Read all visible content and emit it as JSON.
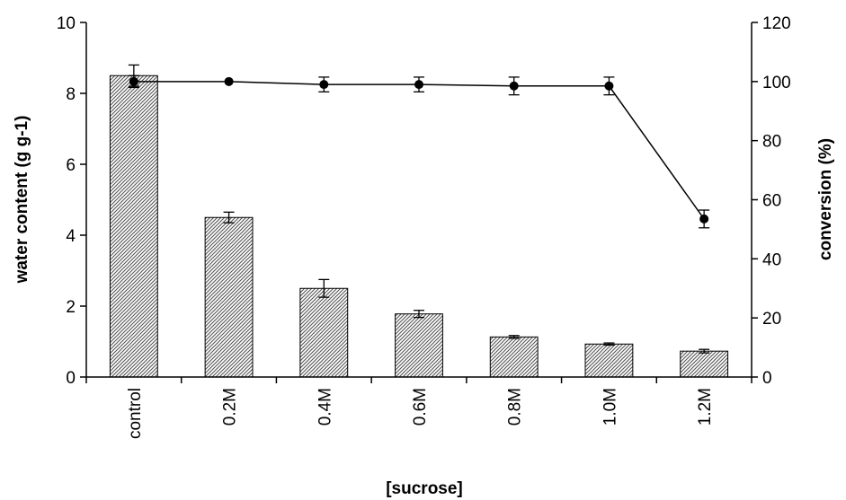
{
  "chart_data": {
    "type": "bar",
    "title": "",
    "xlabel": "[sucrose]",
    "ylabel": "water content (g g-1)",
    "y2label": "conversion (%)",
    "categories": [
      "control",
      "0.2M",
      "0.4M",
      "0.6M",
      "0.8M",
      "1.0M",
      "1.2M"
    ],
    "ylim": [
      0,
      10
    ],
    "y2lim": [
      0,
      120
    ],
    "yticks": [
      "0",
      "2",
      "4",
      "6",
      "8",
      "10"
    ],
    "y2ticks": [
      "0",
      "20",
      "40",
      "60",
      "80",
      "100",
      "120"
    ],
    "grid": false,
    "legend": "none",
    "series": [
      {
        "type": "bar",
        "axis": "left",
        "values": [
          8.5,
          4.5,
          2.5,
          1.78,
          1.13,
          0.93,
          0.73
        ],
        "errors": [
          0.3,
          0.15,
          0.25,
          0.1,
          0.04,
          0.03,
          0.05
        ]
      },
      {
        "type": "line",
        "axis": "right",
        "values": [
          100,
          100,
          99,
          99,
          98.5,
          98.5,
          53.5
        ],
        "errors": [
          2,
          0,
          2.5,
          2.5,
          3,
          3,
          3
        ]
      }
    ],
    "colors": {
      "bar_fill": "#9a9a9a",
      "bar_edge": "#000000",
      "line": "#000000",
      "marker": "#000000"
    }
  }
}
